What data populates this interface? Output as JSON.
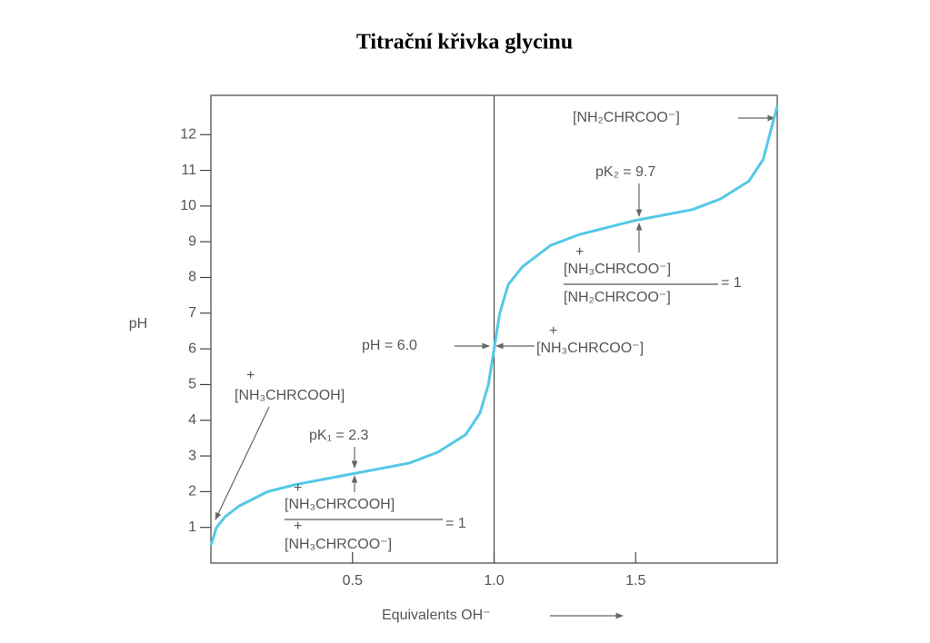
{
  "chart_data": {
    "type": "line",
    "title": "Titrační křivka glycinu",
    "x_label": "Equivalents OH⁻",
    "y_label": "pH",
    "xlim": [
      0,
      2
    ],
    "ylim": [
      0,
      13.1
    ],
    "xticks": [
      0.5,
      {
        "value": 1,
        "label": "1.0"
      },
      1.5
    ],
    "yticks": [
      1,
      2,
      3,
      4,
      5,
      6,
      7,
      8,
      9,
      10,
      11,
      12
    ],
    "vline": 1,
    "series": [
      {
        "color": "#55c8e6",
        "x": [
          0,
          0.02,
          0.05,
          0.1,
          0.2,
          0.3,
          0.5,
          0.7,
          0.8,
          0.9,
          0.95,
          0.98,
          1.0,
          1.02,
          1.05,
          1.1,
          1.2,
          1.3,
          1.5,
          1.7,
          1.8,
          1.9,
          1.95,
          2.0
        ],
        "values": [
          0.5,
          1.0,
          1.3,
          1.6,
          2.0,
          2.2,
          2.5,
          2.8,
          3.1,
          3.6,
          4.2,
          5.0,
          6.0,
          7.0,
          7.8,
          8.3,
          8.9,
          9.2,
          9.6,
          9.9,
          10.2,
          10.7,
          11.3,
          12.8
        ]
      }
    ],
    "annotations": [
      "[NH₂CHRCOO⁻]",
      "pK₂ = 9.7",
      "+",
      "[NH₃CHRCOO⁻]",
      "[NH₂CHRCOO⁻]",
      "= 1",
      "pH = 6.0",
      "+",
      "[NH₃CHRCOO⁻]",
      "+",
      "[NH₃CHRCOOH]",
      "pK₁ = 2.3",
      "+",
      "[NH₃CHRCOOH]",
      "+",
      "[NH₃CHRCOO⁻]",
      "= 1"
    ]
  }
}
